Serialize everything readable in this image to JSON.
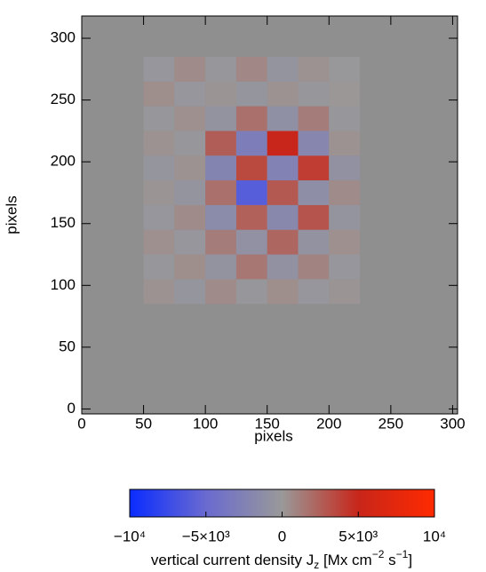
{
  "chart_data": {
    "type": "heatmap",
    "x_label": "pixels",
    "y_label": "pixels",
    "xlim": [
      0,
      304
    ],
    "ylim": [
      -4,
      318
    ],
    "xticks": [
      0,
      50,
      100,
      150,
      200,
      250,
      300
    ],
    "yticks": [
      0,
      50,
      100,
      150,
      200,
      250,
      300
    ],
    "background": "#8f8f8f",
    "xbins": [
      50,
      75,
      100,
      125,
      150,
      175,
      200,
      225
    ],
    "ybins": [
      85,
      105,
      125,
      145,
      165,
      185,
      205,
      225,
      245,
      265,
      285
    ],
    "z": [
      [
        300,
        -400,
        600,
        -200,
        500,
        -300,
        200
      ],
      [
        -200,
        500,
        -600,
        1500,
        -800,
        900,
        -300
      ],
      [
        400,
        -300,
        1200,
        -900,
        2200,
        -700,
        400
      ],
      [
        -300,
        600,
        -1500,
        2500,
        -1800,
        3000,
        -500
      ],
      [
        200,
        -500,
        1800,
        -6000,
        2800,
        -1200,
        600
      ],
      [
        -400,
        300,
        -2200,
        3500,
        -2500,
        4000,
        -800
      ],
      [
        300,
        -200,
        2600,
        -3000,
        5000,
        -2000,
        300
      ],
      [
        -200,
        400,
        -600,
        1800,
        -1000,
        1200,
        -200
      ],
      [
        500,
        -300,
        200,
        -400,
        300,
        -200,
        100
      ],
      [
        -300,
        600,
        -200,
        800,
        -500,
        300,
        -100
      ]
    ],
    "zlim": [
      -10000,
      10000
    ],
    "colorscale": [
      [
        -10000,
        "#0a2cff"
      ],
      [
        -5000,
        "#6a6ad0"
      ],
      [
        0,
        "#999999"
      ],
      [
        5000,
        "#c8261a"
      ],
      [
        10000,
        "#ff2a00"
      ]
    ],
    "zticks": [
      {
        "value": -10000,
        "label": "−10⁴"
      },
      {
        "value": -5000,
        "label": "−5×10³"
      },
      0,
      {
        "value": 5000,
        "label": "5×10³"
      },
      {
        "value": 10000,
        "label": "10⁴"
      }
    ],
    "colorbar_label": [
      "vertical current density J",
      "z",
      " [Mx cm",
      "−2",
      "  s",
      "−1",
      "]"
    ]
  }
}
